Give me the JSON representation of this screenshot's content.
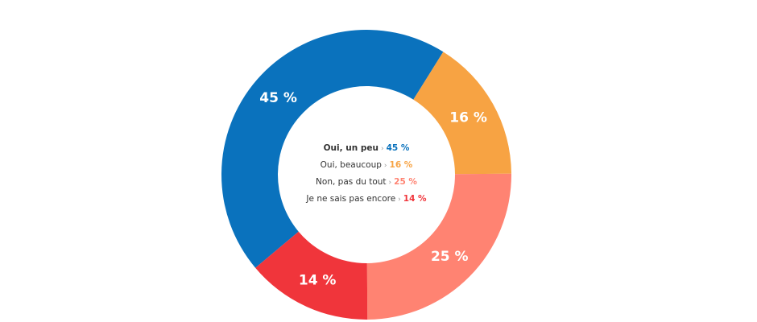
{
  "chart_data": {
    "type": "pie",
    "variant": "donut",
    "title": "",
    "series": [
      {
        "name": "Oui, un peu",
        "value": 45,
        "label": "45 %",
        "color": "#0a72bd"
      },
      {
        "name": "Oui, beaucoup",
        "value": 16,
        "label": "16 %",
        "color": "#f7a343"
      },
      {
        "name": "Non, pas du tout",
        "value": 25,
        "label": "25 %",
        "color": "#ff8372"
      },
      {
        "name": "Je ne sais pas encore",
        "value": 14,
        "label": "14 %",
        "color": "#f0353b"
      }
    ],
    "legend_position": "center",
    "legend_separator": "›"
  }
}
